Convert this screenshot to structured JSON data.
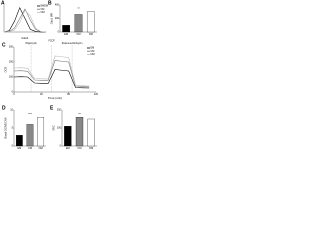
{
  "chart_data": [
    {
      "panel": "A",
      "type": "line",
      "x_label": "Glut1",
      "x": [
        0,
        1,
        2,
        3,
        4,
        5,
        6,
        7,
        8
      ],
      "xlim": [
        0,
        8
      ],
      "ylim": [
        0,
        100
      ],
      "legend": "upper right",
      "series": [
        {
          "name": "EMEM",
          "color": "#000000",
          "values": [
            0,
            5,
            40,
            90,
            50,
            10,
            2,
            0,
            0
          ]
        },
        {
          "name": "CM",
          "color": "#777777",
          "values": [
            0,
            2,
            15,
            50,
            85,
            45,
            10,
            1,
            0
          ]
        },
        {
          "name": "OM",
          "color": "#bbbbbb",
          "values": [
            0,
            1,
            8,
            35,
            80,
            60,
            15,
            2,
            0
          ]
        }
      ]
    },
    {
      "panel": "B",
      "type": "bar",
      "y_label": "Glut1 MFI",
      "categories": [
        "EM",
        "CM",
        "OM"
      ],
      "values": [
        100,
        260,
        300
      ],
      "colors": [
        "#000000",
        "#888888",
        "#ffffff"
      ],
      "ylim": [
        0,
        400
      ],
      "yticks": [
        0,
        200,
        400
      ],
      "annotations": [
        "**"
      ]
    },
    {
      "panel": "C",
      "type": "line",
      "y_label": "OCR",
      "x_label": "Time (min)",
      "x": [
        0,
        10,
        20,
        30,
        40,
        50,
        60,
        70,
        80,
        90,
        100,
        110
      ],
      "xlim": [
        0,
        120
      ],
      "xticks": [
        0,
        40,
        80,
        120
      ],
      "ylim": [
        0,
        300
      ],
      "yticks": [
        0,
        100,
        200,
        300
      ],
      "legend": "upper right",
      "injections": [
        {
          "label": "Oligomycin",
          "x": 25
        },
        {
          "label": "FCCP",
          "x": 55
        },
        {
          "label": "Rotenone/Antimycin",
          "x": 85
        }
      ],
      "series": [
        {
          "name": "EM",
          "color": "#000000",
          "values": [
            100,
            102,
            100,
            60,
            58,
            57,
            150,
            145,
            140,
            30,
            28,
            27
          ]
        },
        {
          "name": "CM",
          "color": "#777777",
          "values": [
            140,
            142,
            138,
            80,
            78,
            77,
            210,
            205,
            200,
            40,
            38,
            37
          ]
        },
        {
          "name": "OM",
          "color": "#bbbbbb",
          "values": [
            160,
            162,
            158,
            90,
            88,
            86,
            240,
            235,
            230,
            45,
            42,
            40
          ]
        }
      ]
    },
    {
      "panel": "D",
      "type": "bar",
      "y_label": "Basal OCR/ECAR",
      "categories": [
        "EM",
        "CM",
        "OM"
      ],
      "values": [
        3,
        6,
        8
      ],
      "colors": [
        "#000000",
        "#888888",
        "#ffffff"
      ],
      "ylim": [
        0,
        10
      ],
      "yticks": [
        0,
        5,
        10
      ],
      "annotations": [
        "***"
      ]
    },
    {
      "panel": "E",
      "type": "bar",
      "y_label": "SRC",
      "categories": [
        "EM",
        "CM",
        "OM"
      ],
      "values": [
        110,
        160,
        150
      ],
      "colors": [
        "#000000",
        "#888888",
        "#ffffff"
      ],
      "ylim": [
        0,
        200
      ],
      "yticks": [
        0,
        100,
        200
      ],
      "annotations": [
        "**"
      ]
    }
  ]
}
